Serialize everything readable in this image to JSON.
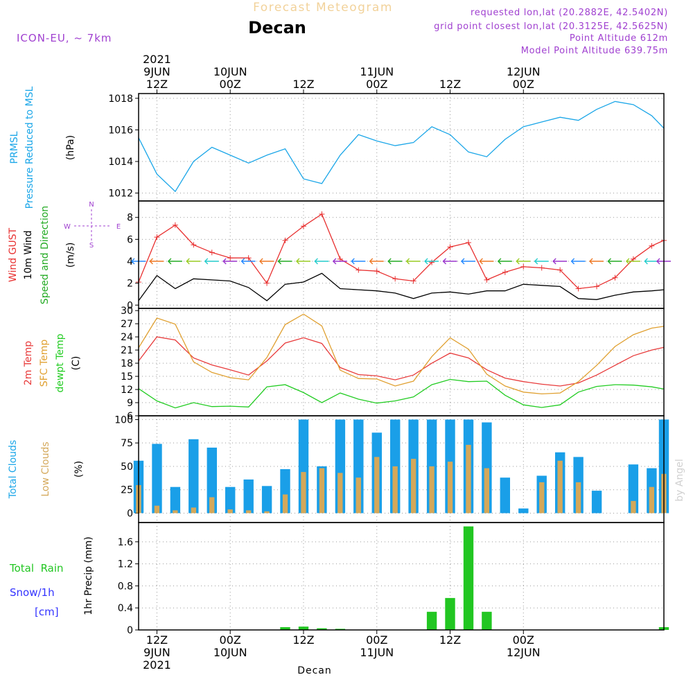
{
  "header": {
    "title": "Forecast Meteogram",
    "location": "Decan",
    "model": "ICON-EU, ~ 7km",
    "requested": "requested lon,lat (20.2882E, 42.5402N)",
    "gridpoint": "grid point closest lon,lat (20.3125E, 42.5625N)",
    "point_alt": "Point Altitude 612m",
    "model_alt": "Model Point Altitude 639.75m",
    "footer": "Decan",
    "watermark": "by Angel"
  },
  "time_axis": {
    "start": "2021-06-09 09Z",
    "end": "2021-06-12 23Z",
    "top_labels": [
      {
        "time": "2021-06-09 12Z",
        "lines": [
          "2021",
          "9JUN",
          "12Z"
        ]
      },
      {
        "time": "2021-06-10 00Z",
        "lines": [
          "10JUN",
          "00Z"
        ]
      },
      {
        "time": "2021-06-10 12Z",
        "lines": [
          "12Z"
        ]
      },
      {
        "time": "2021-06-11 00Z",
        "lines": [
          "11JUN",
          "00Z"
        ]
      },
      {
        "time": "2021-06-11 12Z",
        "lines": [
          "12Z"
        ]
      },
      {
        "time": "2021-06-12 00Z",
        "lines": [
          "12JUN",
          "00Z"
        ]
      }
    ],
    "bottom_labels": [
      {
        "time": "2021-06-09 12Z",
        "lines": [
          "12Z",
          "9JUN",
          "2021"
        ]
      },
      {
        "time": "2021-06-10 00Z",
        "lines": [
          "00Z",
          "10JUN"
        ]
      },
      {
        "time": "2021-06-10 12Z",
        "lines": [
          "12Z"
        ]
      },
      {
        "time": "2021-06-11 00Z",
        "lines": [
          "00Z",
          "11JUN"
        ]
      },
      {
        "time": "2021-06-11 12Z",
        "lines": [
          "12Z"
        ]
      },
      {
        "time": "2021-06-12 00Z",
        "lines": [
          "00Z",
          "12JUN"
        ]
      }
    ]
  },
  "panel_labels": {
    "pressure": {
      "name1": "PRMSL",
      "name2": "Pressure Reduced to MSL",
      "unit": "(hPa)"
    },
    "wind": {
      "gust": "Wind GUST",
      "wind": "10m Wind",
      "dir": "Speed and Direction",
      "unit": "(m/s)",
      "compass_n": "N",
      "compass_s": "S",
      "compass_e": "E",
      "compass_w": "W"
    },
    "temp": {
      "t2m": "2m Temp",
      "sfc": "SFC Temp",
      "dew": "dewpt Temp",
      "unit": "(C)"
    },
    "clouds": {
      "total": "Total Clouds",
      "low": "Low Clouds",
      "unit": "(%)"
    },
    "precip": {
      "rain": "Total  Rain",
      "snow": "Snow/1h",
      "snow_unit": "[cm]",
      "unit": "1hr Precip (mm)"
    }
  },
  "colors": {
    "pressure": "#1aa6e8",
    "gust": "#e83030",
    "wind": "#000000",
    "t2m": "#e83a3a",
    "sfc": "#e0a030",
    "dew": "#22cc22",
    "total_clouds": "#1a9fe8",
    "low_clouds": "#d4a85a",
    "rain": "#22c622",
    "snow": "#3333ff",
    "header_purple": "#a040d0",
    "title_orange": "#f2d29a"
  },
  "chart_data": [
    {
      "type": "line",
      "name": "PRMSL",
      "ylim": [
        1011.5,
        1018.3
      ],
      "yticks": [
        1012,
        1014,
        1016,
        1018
      ],
      "x": [
        "2021-06-09 09Z",
        "2021-06-09 12Z",
        "2021-06-09 15Z",
        "2021-06-09 18Z",
        "2021-06-09 21Z",
        "2021-06-10 00Z",
        "2021-06-10 03Z",
        "2021-06-10 06Z",
        "2021-06-10 09Z",
        "2021-06-10 12Z",
        "2021-06-10 15Z",
        "2021-06-10 18Z",
        "2021-06-10 21Z",
        "2021-06-11 00Z",
        "2021-06-11 03Z",
        "2021-06-11 06Z",
        "2021-06-11 09Z",
        "2021-06-11 12Z",
        "2021-06-11 15Z",
        "2021-06-11 18Z",
        "2021-06-11 21Z",
        "2021-06-12 00Z",
        "2021-06-12 03Z",
        "2021-06-12 06Z",
        "2021-06-12 09Z",
        "2021-06-12 12Z",
        "2021-06-12 15Z",
        "2021-06-12 18Z",
        "2021-06-12 21Z",
        "2021-06-12 23Z"
      ],
      "series": [
        {
          "name": "PRMSL",
          "values": [
            1015.5,
            1013.2,
            1012.1,
            1014.0,
            1014.9,
            1014.4,
            1013.9,
            1014.4,
            1014.8,
            1012.9,
            1012.6,
            1014.4,
            1015.7,
            1015.3,
            1015.0,
            1015.2,
            1016.2,
            1015.7,
            1014.6,
            1014.3,
            1015.4,
            1016.2,
            1016.5,
            1016.8,
            1016.6,
            1017.3,
            1017.8,
            1017.6,
            1016.9,
            1016.1
          ]
        }
      ]
    },
    {
      "type": "line",
      "name": "Wind",
      "ylim": [
        -0.3,
        9.5
      ],
      "yticks": [
        0,
        2,
        4,
        6,
        8
      ],
      "x": [
        "2021-06-09 09Z",
        "2021-06-09 12Z",
        "2021-06-09 15Z",
        "2021-06-09 18Z",
        "2021-06-09 21Z",
        "2021-06-10 00Z",
        "2021-06-10 03Z",
        "2021-06-10 06Z",
        "2021-06-10 09Z",
        "2021-06-10 12Z",
        "2021-06-10 15Z",
        "2021-06-10 18Z",
        "2021-06-10 21Z",
        "2021-06-11 00Z",
        "2021-06-11 03Z",
        "2021-06-11 06Z",
        "2021-06-11 09Z",
        "2021-06-11 12Z",
        "2021-06-11 15Z",
        "2021-06-11 18Z",
        "2021-06-11 21Z",
        "2021-06-12 00Z",
        "2021-06-12 03Z",
        "2021-06-12 06Z",
        "2021-06-12 09Z",
        "2021-06-12 12Z",
        "2021-06-12 15Z",
        "2021-06-12 18Z",
        "2021-06-12 21Z",
        "2021-06-12 23Z"
      ],
      "series": [
        {
          "name": "Wind GUST",
          "values": [
            2.1,
            6.2,
            7.3,
            5.5,
            4.8,
            4.3,
            4.3,
            2.0,
            5.9,
            7.2,
            8.3,
            4.2,
            3.2,
            3.1,
            2.4,
            2.2,
            3.9,
            5.3,
            5.7,
            2.3,
            3.0,
            3.5,
            3.4,
            3.2,
            1.5,
            1.7,
            2.5,
            4.2,
            5.4,
            5.9
          ]
        },
        {
          "name": "10m Wind",
          "values": [
            0.4,
            2.7,
            1.5,
            2.4,
            2.3,
            2.2,
            1.6,
            0.4,
            1.9,
            2.1,
            2.9,
            1.5,
            1.4,
            1.3,
            1.1,
            0.6,
            1.1,
            1.2,
            1.0,
            1.3,
            1.3,
            1.9,
            1.8,
            1.7,
            0.6,
            0.5,
            0.9,
            1.2,
            1.3,
            1.4
          ]
        }
      ]
    },
    {
      "type": "line",
      "name": "Temperature",
      "ylim": [
        6,
        30.5
      ],
      "yticks": [
        6,
        9,
        12,
        15,
        18,
        21,
        24,
        27,
        30
      ],
      "x": [
        "2021-06-09 09Z",
        "2021-06-09 12Z",
        "2021-06-09 15Z",
        "2021-06-09 18Z",
        "2021-06-09 21Z",
        "2021-06-10 00Z",
        "2021-06-10 03Z",
        "2021-06-10 06Z",
        "2021-06-10 09Z",
        "2021-06-10 12Z",
        "2021-06-10 15Z",
        "2021-06-10 18Z",
        "2021-06-10 21Z",
        "2021-06-11 00Z",
        "2021-06-11 03Z",
        "2021-06-11 06Z",
        "2021-06-11 09Z",
        "2021-06-11 12Z",
        "2021-06-11 15Z",
        "2021-06-11 18Z",
        "2021-06-11 21Z",
        "2021-06-12 00Z",
        "2021-06-12 03Z",
        "2021-06-12 06Z",
        "2021-06-12 09Z",
        "2021-06-12 12Z",
        "2021-06-12 15Z",
        "2021-06-12 18Z",
        "2021-06-12 21Z",
        "2021-06-12 23Z"
      ],
      "series": [
        {
          "name": "2m Temp",
          "values": [
            18.5,
            24.0,
            23.3,
            19.2,
            17.6,
            16.5,
            15.3,
            18.5,
            22.6,
            23.8,
            22.5,
            17.0,
            15.4,
            15.1,
            14.2,
            15.3,
            18.0,
            20.3,
            19.2,
            16.5,
            14.6,
            13.8,
            13.2,
            12.8,
            13.5,
            15.3,
            17.5,
            19.7,
            21.0,
            21.6
          ]
        },
        {
          "name": "SFC Temp",
          "values": [
            21.5,
            28.3,
            26.9,
            18.3,
            15.9,
            14.7,
            14.2,
            19.3,
            26.8,
            29.2,
            26.5,
            16.4,
            14.5,
            14.4,
            12.8,
            13.9,
            19.5,
            23.8,
            21.2,
            15.5,
            12.8,
            11.4,
            11.0,
            11.2,
            13.8,
            17.5,
            21.8,
            24.5,
            26.0,
            26.4
          ]
        },
        {
          "name": "dewpt Temp",
          "values": [
            12.2,
            9.4,
            7.8,
            9.0,
            8.1,
            8.2,
            8.0,
            12.6,
            13.1,
            11.3,
            9.0,
            11.2,
            9.8,
            8.9,
            9.4,
            10.3,
            13.1,
            14.3,
            13.8,
            13.9,
            10.7,
            8.5,
            7.9,
            8.5,
            11.4,
            12.7,
            13.1,
            13.0,
            12.6,
            12.1
          ]
        }
      ]
    },
    {
      "type": "bar",
      "name": "Clouds",
      "ylim": [
        -10,
        104
      ],
      "yticks": [
        0,
        25,
        50,
        75,
        100
      ],
      "x": [
        "2021-06-09 09Z",
        "2021-06-09 12Z",
        "2021-06-09 15Z",
        "2021-06-09 18Z",
        "2021-06-09 21Z",
        "2021-06-10 00Z",
        "2021-06-10 03Z",
        "2021-06-10 06Z",
        "2021-06-10 09Z",
        "2021-06-10 12Z",
        "2021-06-10 15Z",
        "2021-06-10 18Z",
        "2021-06-10 21Z",
        "2021-06-11 00Z",
        "2021-06-11 03Z",
        "2021-06-11 06Z",
        "2021-06-11 09Z",
        "2021-06-11 12Z",
        "2021-06-11 15Z",
        "2021-06-11 18Z",
        "2021-06-11 21Z",
        "2021-06-12 00Z",
        "2021-06-12 03Z",
        "2021-06-12 06Z",
        "2021-06-12 09Z",
        "2021-06-12 12Z",
        "2021-06-12 15Z",
        "2021-06-12 18Z",
        "2021-06-12 21Z",
        "2021-06-12 23Z"
      ],
      "series": [
        {
          "name": "Total Clouds",
          "values": [
            56,
            74,
            28,
            79,
            70,
            28,
            36,
            29,
            47,
            100,
            50,
            100,
            100,
            86,
            100,
            100,
            100,
            100,
            100,
            97,
            38,
            5,
            40,
            65,
            60,
            24,
            0,
            52,
            48,
            100
          ]
        },
        {
          "name": "Low Clouds",
          "values": [
            30,
            8,
            3,
            6,
            17,
            4,
            3,
            2,
            20,
            44,
            48,
            43,
            38,
            60,
            50,
            58,
            50,
            55,
            73,
            48,
            0,
            0,
            33,
            56,
            33,
            0,
            0,
            13,
            28,
            42
          ]
        }
      ]
    },
    {
      "type": "bar",
      "name": "Precipitation",
      "ylim": [
        0,
        1.95
      ],
      "yticks": [
        0,
        0.4,
        0.8,
        1.2,
        1.6
      ],
      "x": [
        "2021-06-09 09Z",
        "2021-06-09 12Z",
        "2021-06-09 15Z",
        "2021-06-09 18Z",
        "2021-06-09 21Z",
        "2021-06-10 00Z",
        "2021-06-10 03Z",
        "2021-06-10 06Z",
        "2021-06-10 09Z",
        "2021-06-10 12Z",
        "2021-06-10 15Z",
        "2021-06-10 18Z",
        "2021-06-10 21Z",
        "2021-06-11 00Z",
        "2021-06-11 03Z",
        "2021-06-11 06Z",
        "2021-06-11 09Z",
        "2021-06-11 12Z",
        "2021-06-11 15Z",
        "2021-06-11 18Z",
        "2021-06-11 21Z",
        "2021-06-12 00Z",
        "2021-06-12 03Z",
        "2021-06-12 06Z",
        "2021-06-12 09Z",
        "2021-06-12 12Z",
        "2021-06-12 15Z",
        "2021-06-12 18Z",
        "2021-06-12 21Z",
        "2021-06-12 23Z"
      ],
      "series": [
        {
          "name": "Total Rain",
          "values": [
            0,
            0,
            0,
            0,
            0,
            0,
            0,
            0,
            0.05,
            0.06,
            0.03,
            0.02,
            0,
            0,
            0,
            0,
            0.33,
            0.58,
            1.88,
            0.33,
            0,
            0,
            0,
            0,
            0,
            0,
            0,
            0,
            0,
            0.05
          ]
        },
        {
          "name": "Snow/1h",
          "values": [
            0,
            0,
            0,
            0,
            0,
            0,
            0,
            0,
            0,
            0,
            0,
            0,
            0,
            0,
            0,
            0,
            0,
            0,
            0,
            0,
            0,
            0,
            0,
            0,
            0,
            0,
            0,
            0,
            0,
            0
          ]
        }
      ]
    }
  ]
}
